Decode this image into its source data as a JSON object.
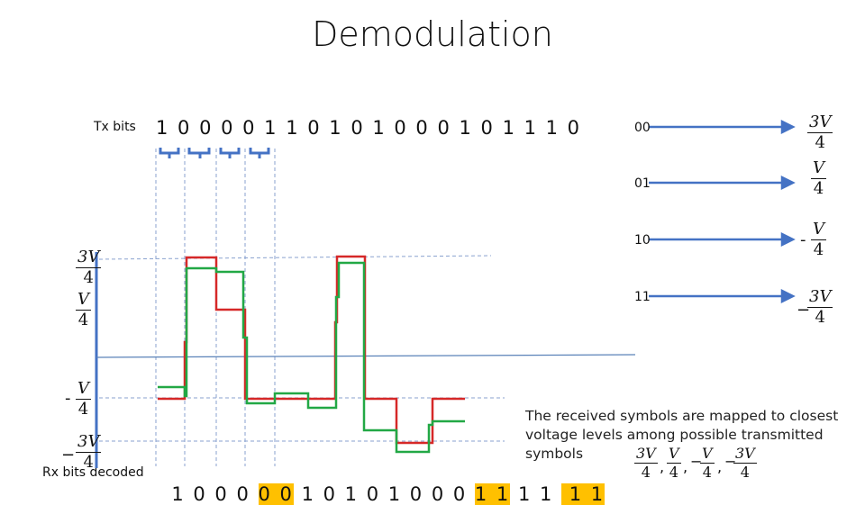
{
  "title": "Demodulation",
  "tx": {
    "label": "Tx bits",
    "bits": "1 0 0 0 0 1 1 0 1 0 1 0 0 0 1 0 1 1 1 0"
  },
  "rx": {
    "label": "Rx bits decoded",
    "segments": [
      {
        "text": "1 0 0 0 ",
        "highlight": false
      },
      {
        "text": "0 0",
        "highlight": true
      },
      {
        "text": " 1 0 1 0 1 0 0 0 ",
        "highlight": false
      },
      {
        "text": "1 1",
        "highlight": true
      },
      {
        "text": " 1 1 ",
        "highlight": false
      },
      {
        "text": " 1 1",
        "highlight": true
      }
    ]
  },
  "mapping": [
    {
      "symbol": "00",
      "level_num": "3V",
      "level_den": "4",
      "sign": ""
    },
    {
      "symbol": "01",
      "level_num": "V",
      "level_den": "4",
      "sign": ""
    },
    {
      "symbol": "10",
      "level_num": "V",
      "level_den": "4",
      "sign": "-"
    },
    {
      "symbol": "11",
      "level_num": "3V",
      "level_den": "4",
      "sign": "−"
    }
  ],
  "axis_levels": [
    {
      "num": "3V",
      "den": "4",
      "sign": ""
    },
    {
      "num": "V",
      "den": "4",
      "sign": ""
    },
    {
      "num": "V",
      "den": "4",
      "sign": "-"
    },
    {
      "num": "3V",
      "den": "4",
      "sign": "−"
    }
  ],
  "note": {
    "text": "The received symbols are mapped to closest voltage levels among possible transmitted symbols",
    "levels": [
      {
        "num": "3V",
        "den": "4",
        "sign": ""
      },
      {
        "num": "V",
        "den": "4",
        "sign": ""
      },
      {
        "num": "V",
        "den": "4",
        "sign": "−"
      },
      {
        "num": "3V",
        "den": "4",
        "sign": "−"
      }
    ],
    "separator": ","
  },
  "colors": {
    "tx_signal": "#d62828",
    "rx_signal": "#22a845",
    "guide": "#5b7fc1",
    "arrow": "#4472c4",
    "highlight": "#ffc000"
  }
}
